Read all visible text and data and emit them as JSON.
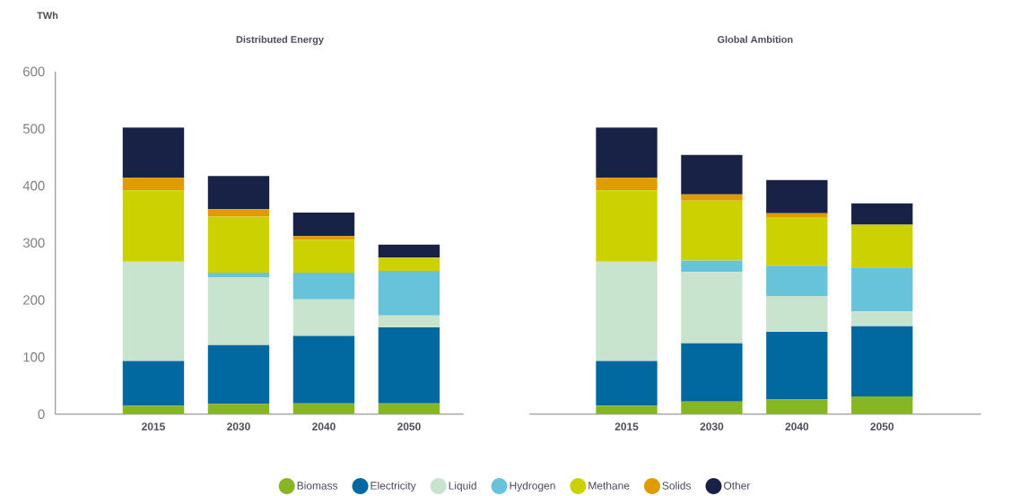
{
  "chart_data": [
    {
      "type": "bar",
      "title": "Distributed Energy",
      "ylabel": "TWh",
      "categories": [
        "2015",
        "2030",
        "2040",
        "2050"
      ],
      "stacked": true,
      "ylim": [
        0,
        600
      ],
      "yticks": [
        0,
        100,
        200,
        300,
        400,
        500,
        600
      ],
      "legend": "bottom",
      "series": [
        {
          "name": "Biomass",
          "color": "#86b624",
          "values": [
            15,
            18,
            19,
            19
          ]
        },
        {
          "name": "Electricity",
          "color": "#0268a0",
          "values": [
            78,
            103,
            118,
            133
          ]
        },
        {
          "name": "Liquid",
          "color": "#c8e3ce",
          "values": [
            174,
            119,
            64,
            21
          ]
        },
        {
          "name": "Hydrogen",
          "color": "#66c3da",
          "values": [
            0,
            8,
            47,
            78
          ]
        },
        {
          "name": "Methane",
          "color": "#cbd200",
          "values": [
            125,
            98,
            57,
            23
          ]
        },
        {
          "name": "Solids",
          "color": "#e09b00",
          "values": [
            22,
            13,
            7,
            0
          ]
        },
        {
          "name": "Other",
          "color": "#182146",
          "values": [
            88,
            58,
            41,
            23
          ]
        }
      ]
    },
    {
      "type": "bar",
      "title": "Global Ambition",
      "categories": [
        "2015",
        "2030",
        "2040",
        "2050"
      ],
      "stacked": true,
      "ylim": [
        0,
        600
      ],
      "yticks": [
        0,
        100,
        200,
        300,
        400,
        500,
        600
      ],
      "tick_labels": "x",
      "series": [
        {
          "color": "#86b624",
          "values": [
            15,
            22,
            26,
            31
          ]
        },
        {
          "color": "#0268a0",
          "values": [
            78,
            102,
            118,
            123
          ]
        },
        {
          "color": "#c8e3ce",
          "values": [
            174,
            125,
            63,
            26
          ]
        },
        {
          "color": "#66c3da",
          "values": [
            0,
            20,
            53,
            77
          ]
        },
        {
          "color": "#cbd200",
          "values": [
            125,
            105,
            84,
            75
          ]
        },
        {
          "color": "#e09b00",
          "values": [
            22,
            11,
            8,
            0
          ]
        },
        {
          "color": "#182146",
          "values": [
            88,
            69,
            58,
            37
          ]
        }
      ]
    }
  ]
}
